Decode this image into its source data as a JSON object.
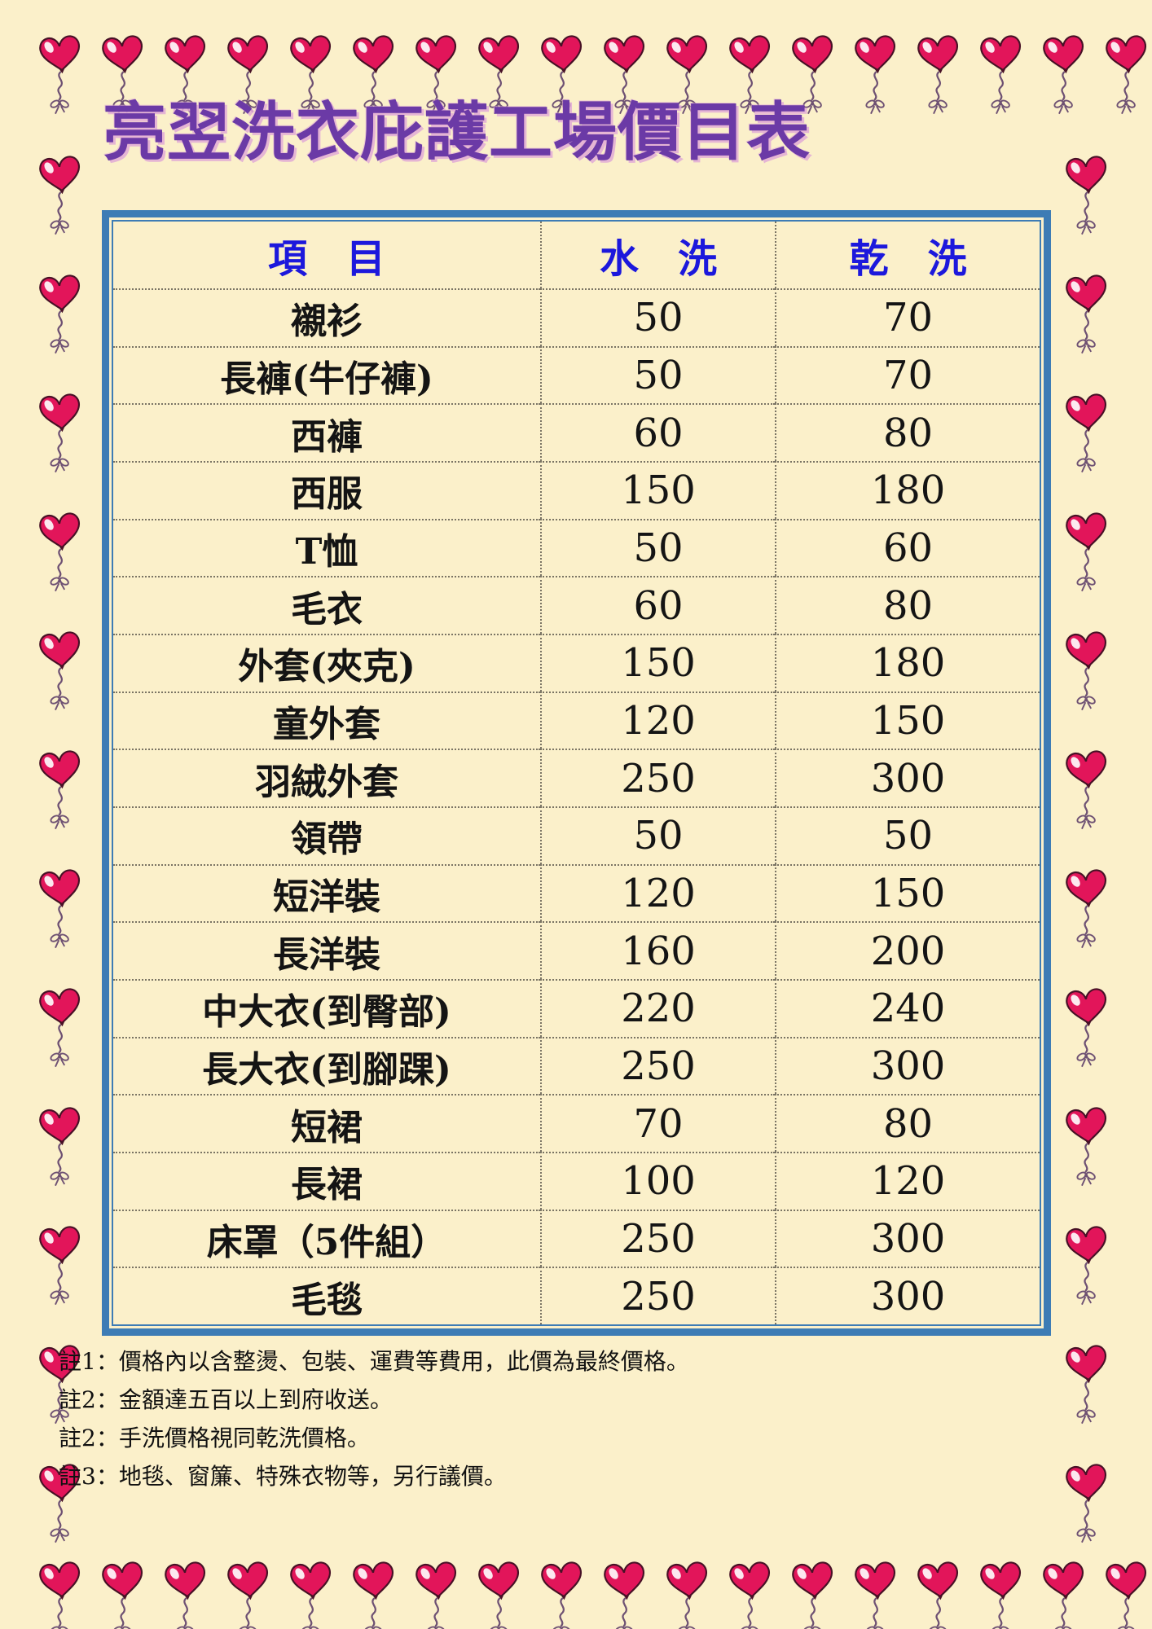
{
  "title": "亮翌洗衣庇護工場價目表",
  "table": {
    "header": {
      "item": "項　目",
      "wash": "水　洗",
      "dry": "乾　洗"
    },
    "rows": [
      {
        "item": "襯衫",
        "wash": "50",
        "dry": "70"
      },
      {
        "item": "長褲(牛仔褲)",
        "wash": "50",
        "dry": "70"
      },
      {
        "item": "西褲",
        "wash": "60",
        "dry": "80"
      },
      {
        "item": "西服",
        "wash": "150",
        "dry": "180"
      },
      {
        "item": "T恤",
        "wash": "50",
        "dry": "60"
      },
      {
        "item": "毛衣",
        "wash": "60",
        "dry": "80"
      },
      {
        "item": "外套(夾克)",
        "wash": "150",
        "dry": "180"
      },
      {
        "item": "童外套",
        "wash": "120",
        "dry": "150"
      },
      {
        "item": "羽絨外套",
        "wash": "250",
        "dry": "300"
      },
      {
        "item": "領帶",
        "wash": "50",
        "dry": "50"
      },
      {
        "item": "短洋裝",
        "wash": "120",
        "dry": "150"
      },
      {
        "item": "長洋裝",
        "wash": "160",
        "dry": "200"
      },
      {
        "item": "中大衣(到臀部)",
        "wash": "220",
        "dry": "240"
      },
      {
        "item": "長大衣(到腳踝)",
        "wash": "250",
        "dry": "300"
      },
      {
        "item": "短裙",
        "wash": "70",
        "dry": "80"
      },
      {
        "item": "長裙",
        "wash": "100",
        "dry": "120"
      },
      {
        "item": "床罩（5件組）",
        "wash": "250",
        "dry": "300"
      },
      {
        "item": "毛毯",
        "wash": "250",
        "dry": "300"
      }
    ]
  },
  "notes": [
    "註1：價格內以含整燙、包裝、運費等費用，此價為最終價格。",
    "註2：金額達五百以上到府收送。",
    "註2：手洗價格視同乾洗價格。",
    "註3：地毯、窗簾、特殊衣物等，另行議價。"
  ],
  "colors": {
    "background": "#FBF0CA",
    "title": "#6B3AA6",
    "table_border": "#3D7CB5",
    "header_text": "#1C18DC",
    "heart": "#E2155A",
    "string": "#6E5173"
  },
  "icons": {
    "border_decoration": "heart-balloon-icon"
  }
}
